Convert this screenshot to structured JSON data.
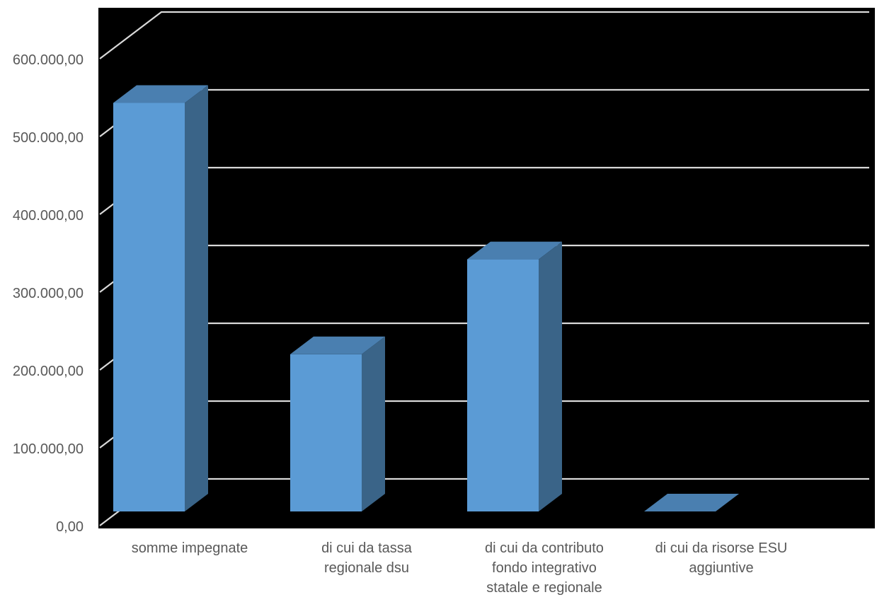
{
  "chart_data": {
    "type": "bar",
    "style": "3d-column",
    "categories": [
      [
        "somme impegnate"
      ],
      [
        "di cui da tassa",
        "regionale  dsu"
      ],
      [
        "di cui da contributo",
        "fondo integrativo",
        "statale e regionale"
      ],
      [
        "di cui da risorse  ESU",
        "aggiuntive"
      ]
    ],
    "values": [
      525000,
      202000,
      324000,
      0
    ],
    "ylim": [
      0,
      600000
    ],
    "yticks": [
      0,
      100000,
      200000,
      300000,
      400000,
      500000,
      600000
    ],
    "ytick_labels": [
      "0,00",
      "100.000,00",
      "200.000,00",
      "300.000,00",
      "400.000,00",
      "500.000,00",
      "600.000,00"
    ],
    "grid": true,
    "legend": "none",
    "title": "",
    "xlabel": "",
    "ylabel": ""
  },
  "colors": {
    "plot_background": "#000000",
    "page_background": "#ffffff",
    "bar_front": "#5b9bd5",
    "bar_top": "#4a7fb0",
    "bar_side": "#3a6488",
    "gridline": "#d9d9d9",
    "tick_text": "#595959"
  }
}
